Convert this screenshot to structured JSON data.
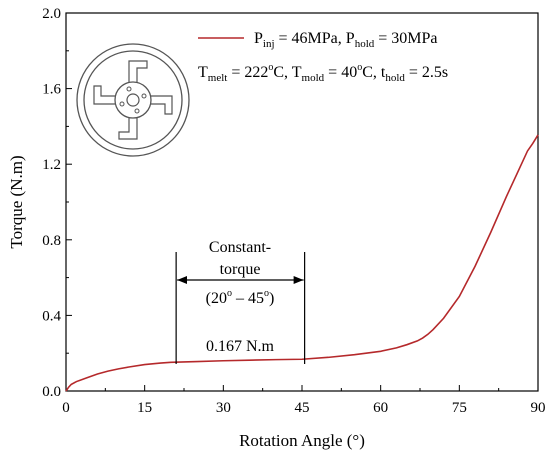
{
  "chart_data": {
    "type": "line",
    "title": "",
    "xlabel": "Rotation Angle (°)",
    "ylabel": "Torque (N.m)",
    "xlim": [
      0,
      90
    ],
    "ylim": [
      0,
      2.0
    ],
    "x_ticks": [
      "0",
      "15",
      "30",
      "45",
      "60",
      "75",
      "90"
    ],
    "y_ticks": [
      "0.0",
      "0.4",
      "0.8",
      "1.2",
      "1.6",
      "2.0"
    ],
    "grid": false,
    "legend_position": "top-right",
    "series": [
      {
        "name": "",
        "color": "#b5292b",
        "x": [
          0,
          0.5,
          1,
          2,
          4,
          6,
          8,
          10,
          12,
          15,
          18,
          20,
          25,
          30,
          35,
          40,
          45,
          50,
          55,
          60,
          63,
          65,
          67,
          68,
          69,
          70,
          72,
          75,
          78,
          81,
          84,
          86,
          88,
          89,
          90
        ],
        "y": [
          0.0,
          0.02,
          0.035,
          0.05,
          0.07,
          0.09,
          0.105,
          0.117,
          0.127,
          0.14,
          0.148,
          0.152,
          0.156,
          0.16,
          0.163,
          0.166,
          0.168,
          0.178,
          0.192,
          0.21,
          0.228,
          0.245,
          0.265,
          0.28,
          0.3,
          0.325,
          0.385,
          0.5,
          0.66,
          0.84,
          1.03,
          1.15,
          1.27,
          1.31,
          1.355
        ]
      }
    ],
    "legend": {
      "line1": {
        "p": "P",
        "inj": "inj",
        "v1": " = 46MPa, ",
        "p2": "P",
        "hold": "hold",
        "v2": " = 30MPa"
      },
      "line2": {
        "t": "T",
        "melt": "melt",
        "v1": " = 222",
        "deg1": "o",
        "c1": "C, ",
        "t2": "T",
        "mold": "mold",
        "v2": " = 40",
        "deg2": "o",
        "c2": "C, ",
        "t3": "t",
        "hold": "hold",
        "v3": " = 2.5s"
      }
    },
    "annotations": {
      "constant_line1": "Constant-",
      "constant_line2": "torque",
      "range_open": "(20",
      "range_deg1": "o",
      "range_mid": " – 45",
      "range_deg2": "o",
      "range_close": ")",
      "torque_value": "0.167 N.m",
      "range_x": [
        21,
        45.5
      ]
    }
  }
}
